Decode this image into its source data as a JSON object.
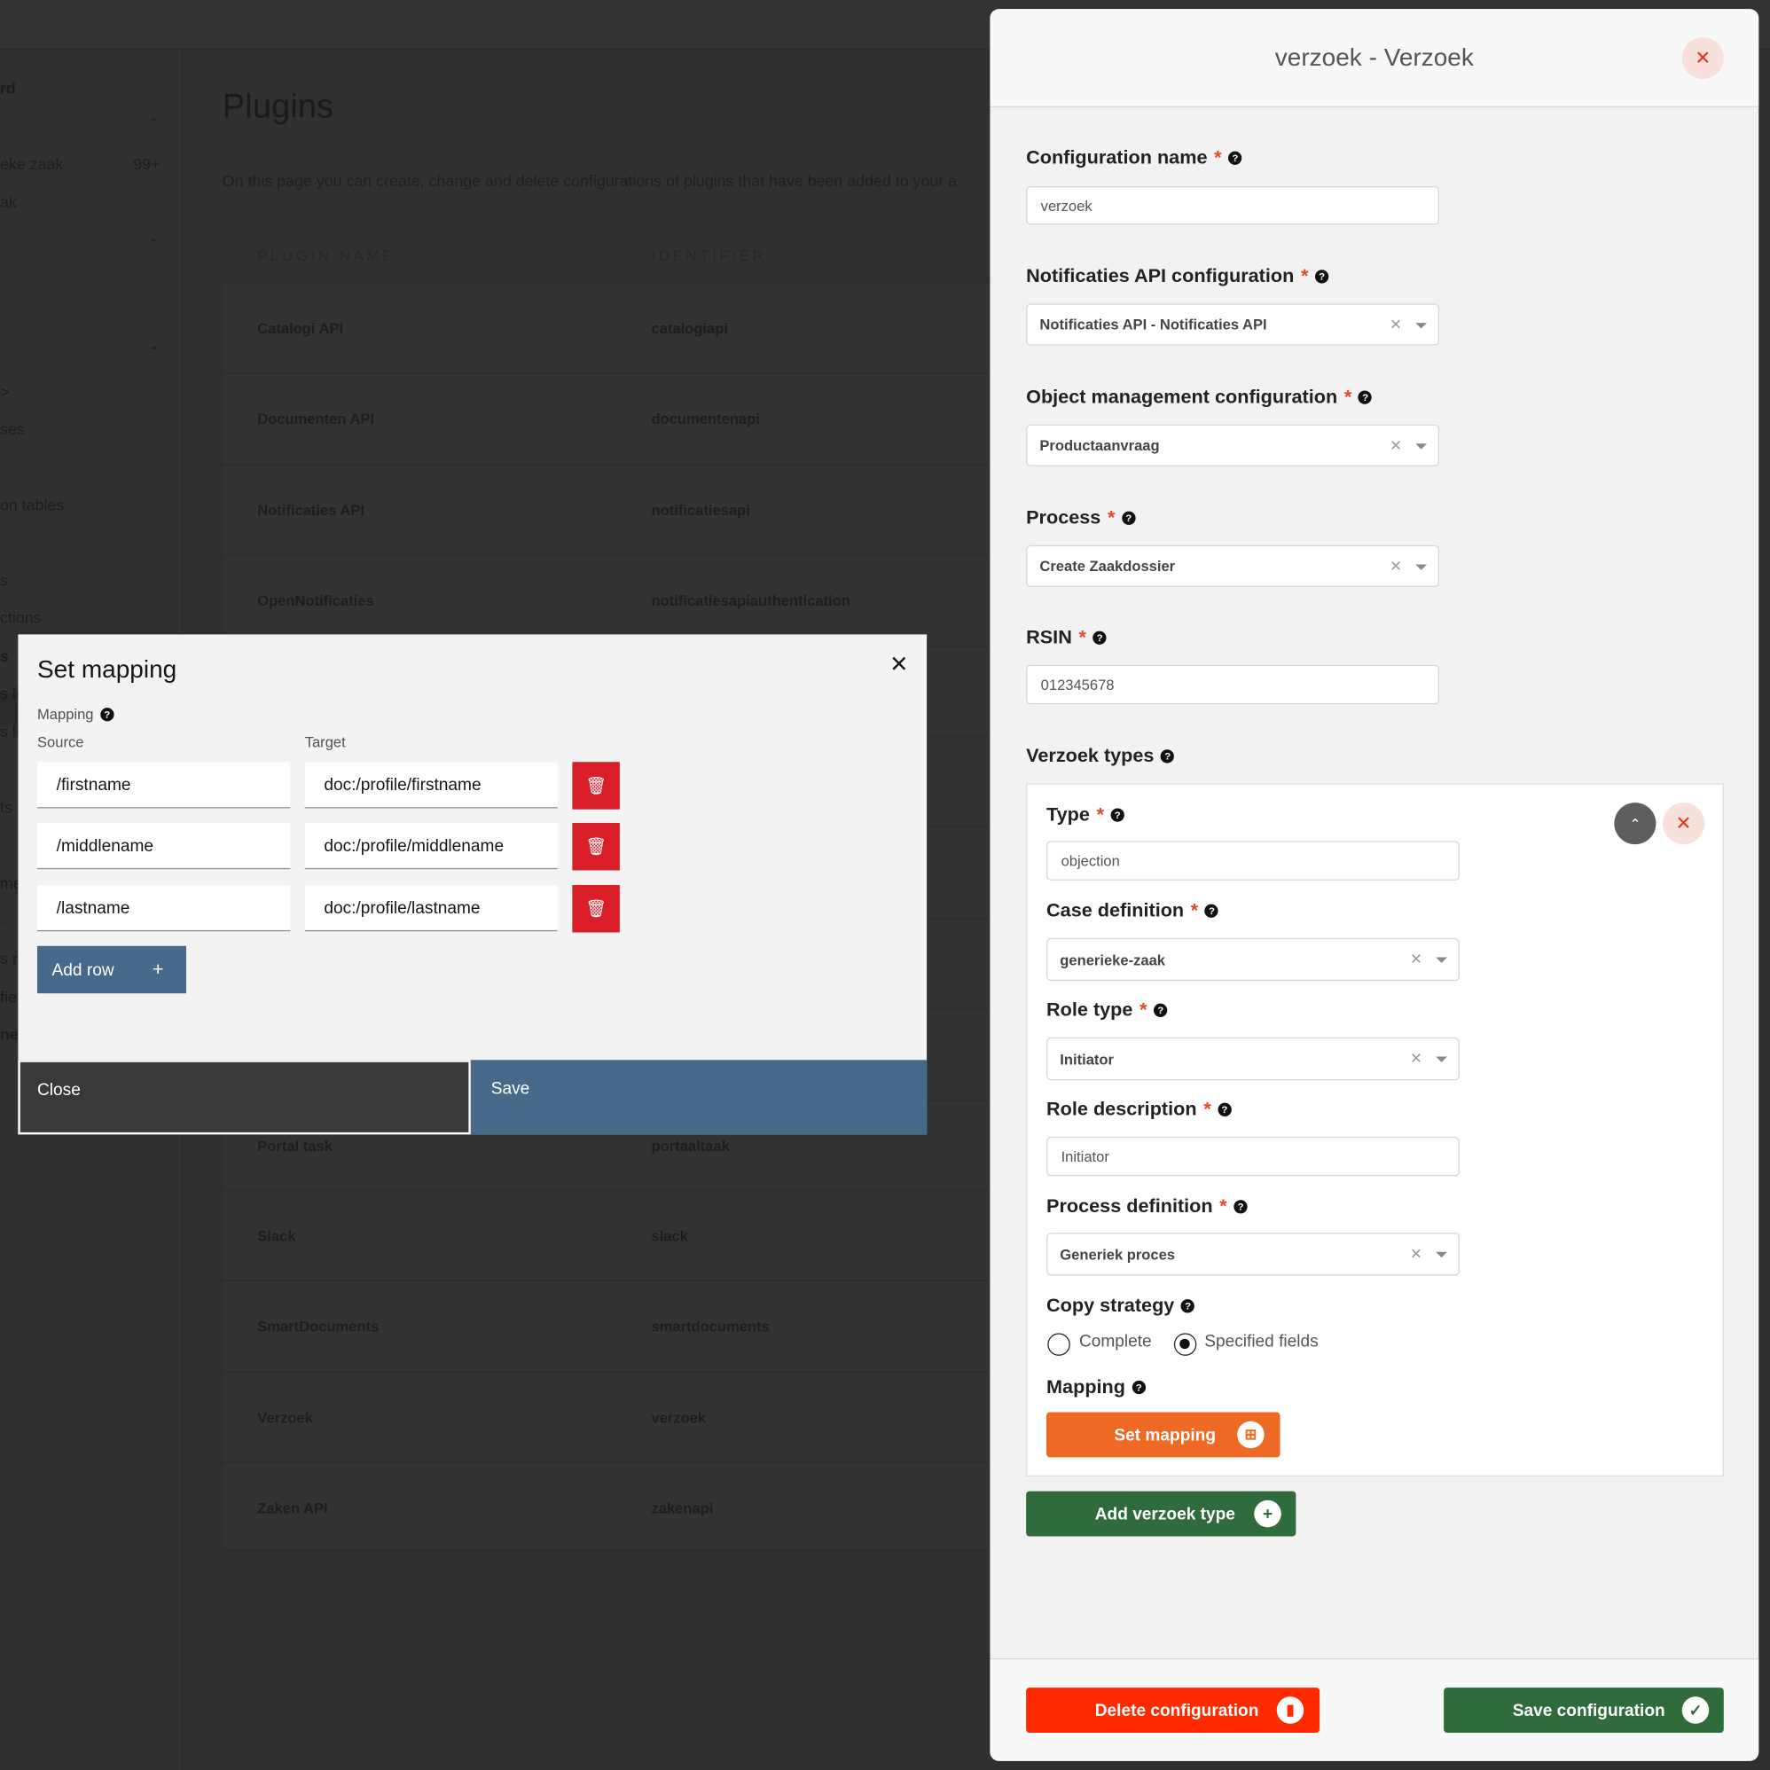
{
  "sidebar": {
    "fragments": [
      "rd",
      "eke zaak",
      "99+",
      "ak",
      ">",
      "ses",
      "on tables",
      "s",
      "ctions",
      "s",
      "s li",
      "s li",
      "ts",
      "me",
      ">",
      "s n",
      "fie",
      "ne"
    ]
  },
  "page": {
    "title": "Plugins",
    "description": "On this page you can create, change and delete configurations of plugins that have been added to your a",
    "columns": [
      "PLUGIN NAME",
      "IDENTIFIER"
    ],
    "rows": [
      {
        "name": "Catalogi API",
        "id": "catalogiapi"
      },
      {
        "name": "Documenten API",
        "id": "documentenapi"
      },
      {
        "name": "Notificaties API",
        "id": "notificatiesapi"
      },
      {
        "name": "OpenNotificaties",
        "id": "notificatiesapiauthentication"
      },
      {
        "name": "Portal task",
        "id": "portaaltaak"
      },
      {
        "name": "Slack",
        "id": "slack"
      },
      {
        "name": "SmartDocuments",
        "id": "smartdocuments"
      },
      {
        "name": "Verzoek",
        "id": "verzoek"
      },
      {
        "name": "Zaken API",
        "id": "zakenapi"
      }
    ]
  },
  "panel": {
    "title": "verzoek - Verzoek",
    "required_mark": "*",
    "help_glyph": "?",
    "fields": {
      "config_name": {
        "label": "Configuration name",
        "value": "verzoek"
      },
      "notificaties": {
        "label": "Notificaties API configuration",
        "value": "Notificaties API - Notificaties API"
      },
      "object_mgmt": {
        "label": "Object management configuration",
        "value": "Productaanvraag"
      },
      "process": {
        "label": "Process",
        "value": "Create Zaakdossier"
      },
      "rsin": {
        "label": "RSIN",
        "value": "012345678"
      }
    },
    "verzoek_types_label": "Verzoek types",
    "type_card": {
      "type": {
        "label": "Type",
        "value": "objection"
      },
      "case_definition": {
        "label": "Case definition",
        "value": "generieke-zaak"
      },
      "role_type": {
        "label": "Role type",
        "value": "Initiator"
      },
      "role_description": {
        "label": "Role description",
        "value": "Initiator"
      },
      "process_definition": {
        "label": "Process definition",
        "value": "Generiek proces"
      },
      "copy_strategy": {
        "label": "Copy strategy",
        "options": [
          "Complete",
          "Specified fields"
        ],
        "selected": "Specified fields"
      },
      "mapping_label": "Mapping",
      "set_mapping_button": "Set mapping"
    },
    "add_type_button": "Add verzoek type",
    "delete_button": "Delete configuration",
    "save_button": "Save configuration",
    "colors": {
      "orange": "#ee6a24",
      "green": "#306b3b",
      "red": "#ff2a00"
    }
  },
  "modal": {
    "title": "Set mapping",
    "mapping_label": "Mapping",
    "source_label": "Source",
    "target_label": "Target",
    "rows": [
      {
        "source": "/firstname",
        "target": "doc:/profile/firstname"
      },
      {
        "source": "/middlename",
        "target": "doc:/profile/middlename"
      },
      {
        "source": "/lastname",
        "target": "doc:/profile/lastname"
      }
    ],
    "add_row_button": "Add row",
    "close_button": "Close",
    "save_button": "Save"
  }
}
